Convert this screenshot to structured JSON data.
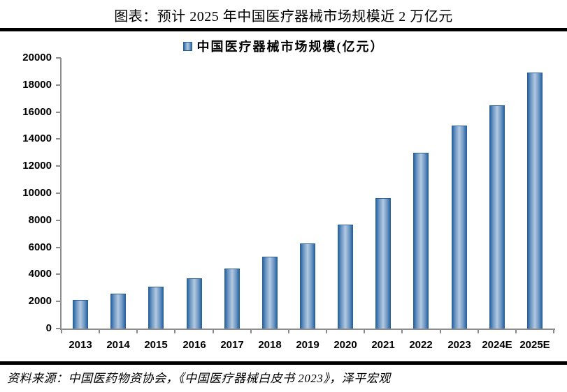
{
  "header": {
    "title": "图表：预计 2025 年中国医疗器械市场规模近 2 万亿元"
  },
  "legend": {
    "label": "中国医疗器械市场规模(亿元）"
  },
  "footer": {
    "source": "资料来源：中国医药物资协会，《中国医疗器械白皮书 2023》，泽平宏观"
  },
  "colors": {
    "bar_edge": "#2A66A3",
    "bar_center": "#B3C9E1",
    "bar_border": "#2B5F99",
    "axis": "#8C8C8C",
    "divider": "#000000",
    "text": "#000000"
  },
  "chart_data": {
    "type": "bar",
    "title": "图表：预计 2025 年中国医疗器械市场规模近 2 万亿元",
    "legend_entries": [
      "中国医疗器械市场规模(亿元）"
    ],
    "legend_position": "top-center",
    "categories": [
      "2013",
      "2014",
      "2015",
      "2016",
      "2017",
      "2018",
      "2019",
      "2020",
      "2021",
      "2022",
      "2023",
      "2024E",
      "2025E"
    ],
    "values": [
      2120,
      2556,
      3080,
      3700,
      4450,
      5304,
      6285,
      7655,
      9630,
      13000,
      15000,
      16500,
      18900
    ],
    "xlabel": "",
    "ylabel": "",
    "ylim": [
      0,
      20000
    ],
    "ytick_step": 2000,
    "grid": false,
    "source": "资料来源：中国医药物资协会，《中国医疗器械白皮书 2023》，泽平宏观"
  }
}
